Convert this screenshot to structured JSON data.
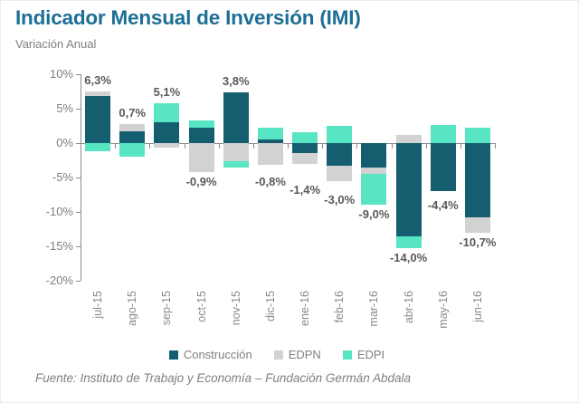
{
  "header": {
    "title": "Indicador Mensual de Inversión (IMI)",
    "subtitle": "Variación Anual"
  },
  "footer": {
    "source": "Fuente: Instituto de Trabajo y Economía – Fundación Germán Abdala"
  },
  "colors": {
    "title": "#1c6e96",
    "construccion": "#155e70",
    "edpn": "#d2d2d2",
    "edpi": "#57e5c3",
    "axis": "#8c8c8c",
    "tick_label": "#7f7f7f",
    "data_label": "#595959"
  },
  "chart_data": {
    "type": "bar",
    "stacked": true,
    "title": "Indicador Mensual de Inversión (IMI)",
    "subtitle": "Variación Anual",
    "xlabel": "",
    "ylabel": "",
    "ylim": [
      -20,
      10
    ],
    "grid": false,
    "legend_position": "bottom",
    "yticks": [
      {
        "label": "10%",
        "value": 10
      },
      {
        "label": "5%",
        "value": 5
      },
      {
        "label": "0%",
        "value": 0
      },
      {
        "label": "-5%",
        "value": -5
      },
      {
        "label": "-10%",
        "value": -10
      },
      {
        "label": "-15%",
        "value": -15
      },
      {
        "label": "-20%",
        "value": -20
      }
    ],
    "categories": [
      "jul-15",
      "ago-15",
      "sep-15",
      "oct-15",
      "nov-15",
      "dic-15",
      "ene-16",
      "feb-16",
      "mar-16",
      "abr-16",
      "may-16",
      "jun-16"
    ],
    "series": [
      {
        "name": "Construcción",
        "color_key": "construccion",
        "values": [
          6.8,
          1.7,
          3.0,
          2.2,
          7.4,
          0.5,
          -1.4,
          -3.3,
          -3.5,
          -13.5,
          -7.0,
          -10.8
        ]
      },
      {
        "name": "EDPN",
        "color_key": "edpn",
        "values": [
          0.7,
          1.0,
          -0.7,
          -4.2,
          -2.6,
          -3.1,
          -1.6,
          -2.2,
          -1.0,
          1.2,
          0,
          -2.2
        ]
      },
      {
        "name": "EDPI",
        "color_key": "edpi",
        "values": [
          -1.2,
          -2.0,
          2.8,
          1.1,
          -1.0,
          1.8,
          1.6,
          2.5,
          -4.5,
          -1.7,
          2.6,
          2.3
        ]
      }
    ],
    "totals": [
      "6,3%",
      "0,7%",
      "5,1%",
      "-0,9%",
      "3,8%",
      "-0,8%",
      "-1,4%",
      "-3,0%",
      "-9,0%",
      "-14,0%",
      "-4,4%",
      "-10,7%"
    ]
  }
}
